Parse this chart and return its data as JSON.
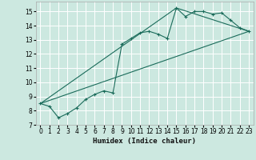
{
  "xlabel": "Humidex (Indice chaleur)",
  "background_color": "#cce8e0",
  "grid_color": "#ffffff",
  "line_color": "#1a6b5a",
  "xlim": [
    -0.5,
    23.5
  ],
  "ylim": [
    7,
    15.7
  ],
  "xticks": [
    0,
    1,
    2,
    3,
    4,
    5,
    6,
    7,
    8,
    9,
    10,
    11,
    12,
    13,
    14,
    15,
    16,
    17,
    18,
    19,
    20,
    21,
    22,
    23
  ],
  "yticks": [
    7,
    8,
    9,
    10,
    11,
    12,
    13,
    14,
    15
  ],
  "curve1_x": [
    0,
    1,
    2,
    3,
    4,
    5,
    6,
    7,
    8,
    9,
    10,
    11,
    12,
    13,
    14,
    15,
    16,
    17,
    18,
    19,
    20,
    21,
    22,
    23
  ],
  "curve1_y": [
    8.5,
    8.3,
    7.5,
    7.8,
    8.2,
    8.8,
    9.15,
    9.4,
    9.25,
    12.7,
    13.1,
    13.5,
    13.6,
    13.4,
    13.1,
    15.25,
    14.65,
    15.0,
    15.0,
    14.82,
    14.9,
    14.38,
    13.85,
    13.6
  ],
  "line1_x": [
    0,
    23
  ],
  "line1_y": [
    8.5,
    13.6
  ],
  "line2_x": [
    0,
    15,
    23
  ],
  "line2_y": [
    8.5,
    15.25,
    13.6
  ],
  "tick_fontsize": 5.5,
  "xlabel_fontsize": 6.5,
  "xlabel_fontweight": "bold"
}
